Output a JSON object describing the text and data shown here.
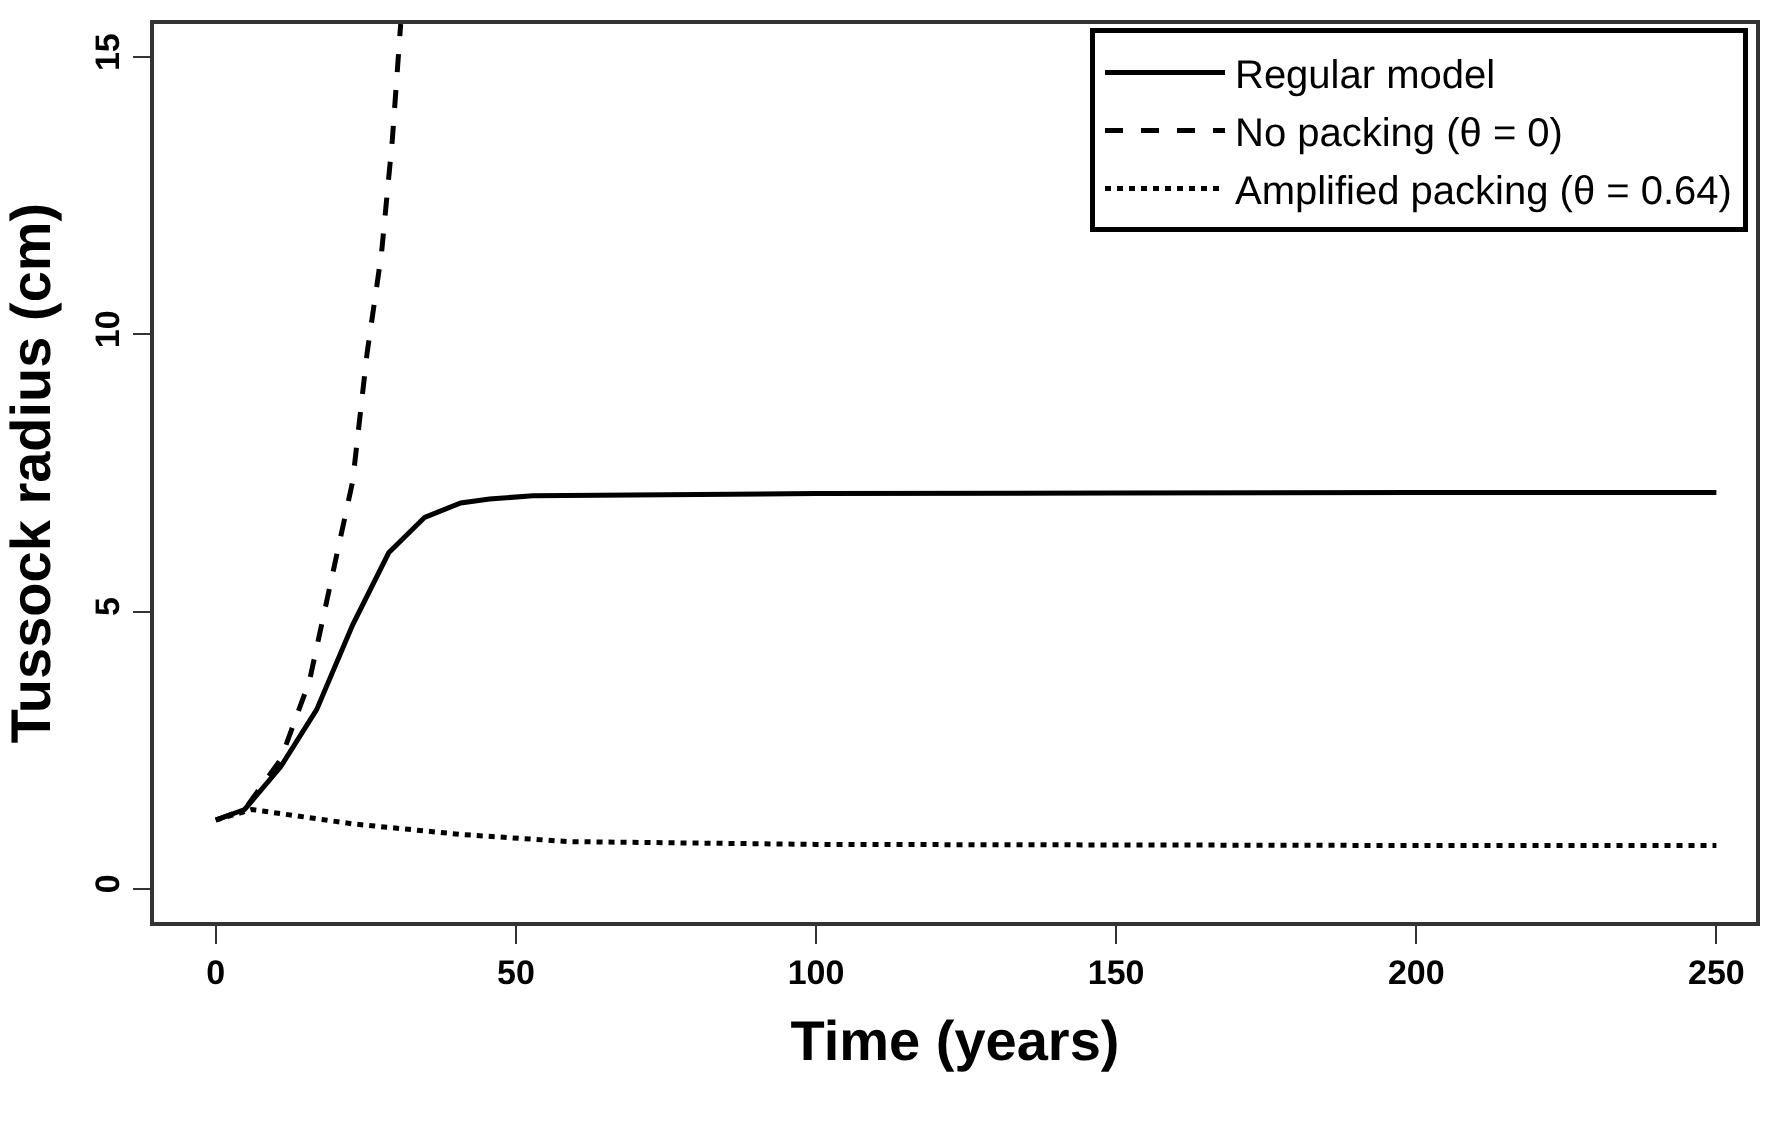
{
  "chart_data": {
    "type": "line",
    "xlabel": "Time (years)",
    "ylabel": "Tussock radius (cm)",
    "xlim": [
      -10.3,
      256.6
    ],
    "ylim": [
      -0.6,
      15.6
    ],
    "xticks": [
      0,
      50,
      100,
      150,
      200,
      250
    ],
    "yticks": [
      0,
      5,
      10,
      15
    ],
    "legend": "top right",
    "marker": "none",
    "series": [
      {
        "name": "Regular model",
        "color": "#000000",
        "line_style": "solid",
        "x": [
          0,
          4.8,
          10.8,
          16.8,
          22.8,
          28.8,
          34.8,
          40.8,
          45.6,
          52.8,
          100,
          150,
          200,
          250
        ],
        "values": [
          1.24,
          1.43,
          2.2,
          3.23,
          4.76,
          6.06,
          6.7,
          6.96,
          7.03,
          7.09,
          7.13,
          7.14,
          7.15,
          7.15
        ]
      },
      {
        "name": "No packing (θ = 0)",
        "color": "#000000",
        "line_style": "dashed",
        "x": [
          0,
          4.8,
          10.8,
          15.6,
          19.2,
          22.8,
          25.2,
          27.6,
          29.4,
          30.8
        ],
        "values": [
          1.24,
          1.43,
          2.33,
          3.75,
          5.55,
          7.35,
          9.66,
          11.46,
          13.5,
          15.6
        ]
      },
      {
        "name": "Amplified packing (θ = 0.64)",
        "color": "#000000",
        "line_style": "dotted",
        "x": [
          0,
          6.0,
          22.8,
          40.8,
          58.8,
          100,
          150,
          200,
          250
        ],
        "values": [
          1.24,
          1.43,
          1.17,
          0.98,
          0.85,
          0.8,
          0.79,
          0.78,
          0.78
        ]
      }
    ]
  }
}
